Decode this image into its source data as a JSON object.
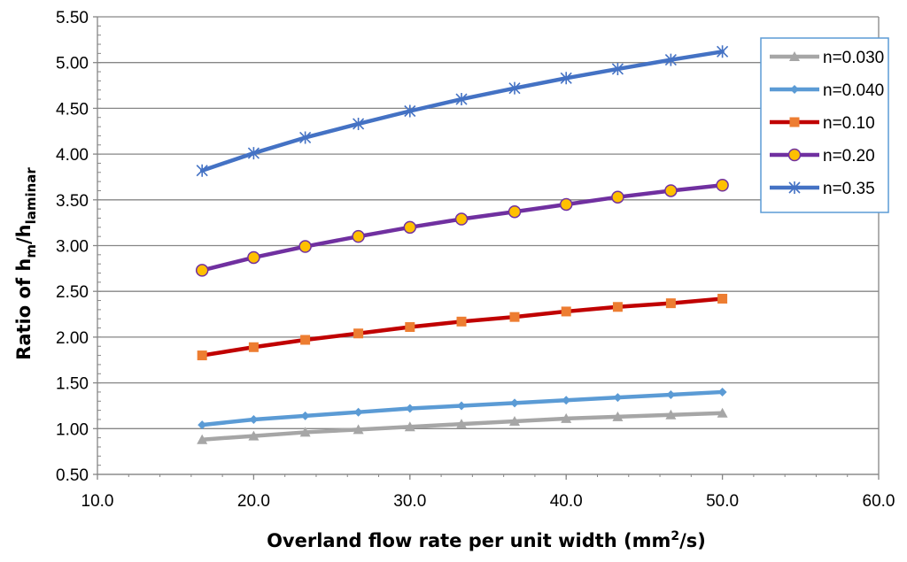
{
  "chart_data": {
    "type": "line",
    "title": "",
    "xlabel": "Overland flow rate per unit width (mm",
    "xlabel_sup": "2",
    "xlabel_tail": "/s)",
    "ylabel": {
      "prefix": "Ratio of h",
      "sub1": "m",
      "mid": "/h",
      "sub2": "laminar"
    },
    "xlim": [
      10.0,
      60.0
    ],
    "ylim": [
      0.5,
      5.5
    ],
    "x_ticks": [
      "10.0",
      "20.0",
      "30.0",
      "40.0",
      "50.0",
      "60.0"
    ],
    "y_ticks": [
      "0.50",
      "1.00",
      "1.50",
      "2.00",
      "2.50",
      "3.00",
      "3.50",
      "4.00",
      "4.50",
      "5.00",
      "5.50"
    ],
    "grid": "horizontal",
    "legend_position": "top-right",
    "x": [
      16.7,
      20.0,
      23.3,
      26.7,
      30.0,
      33.3,
      36.7,
      40.0,
      43.3,
      46.7,
      50.0
    ],
    "series": [
      {
        "name": "n=0.030",
        "color": "#a6a6a6",
        "marker": "triangle",
        "values": [
          0.88,
          0.92,
          0.96,
          0.99,
          1.02,
          1.05,
          1.08,
          1.11,
          1.13,
          1.15,
          1.17
        ]
      },
      {
        "name": "n=0.040",
        "color": "#5b9bd5",
        "marker": "diamond",
        "values": [
          1.04,
          1.1,
          1.14,
          1.18,
          1.22,
          1.25,
          1.28,
          1.31,
          1.34,
          1.37,
          1.4
        ]
      },
      {
        "name": "n=0.10",
        "color": "#c00000",
        "marker_color": "#ed7d31",
        "marker": "square",
        "values": [
          1.8,
          1.89,
          1.97,
          2.04,
          2.11,
          2.17,
          2.22,
          2.28,
          2.33,
          2.37,
          2.42
        ]
      },
      {
        "name": "n=0.20",
        "color": "#7030a0",
        "marker_color": "#ffc000",
        "marker": "circle",
        "values": [
          2.73,
          2.87,
          2.99,
          3.1,
          3.2,
          3.29,
          3.37,
          3.45,
          3.53,
          3.6,
          3.66
        ]
      },
      {
        "name": "n=0.35",
        "color": "#4472c4",
        "marker": "star",
        "values": [
          3.82,
          4.01,
          4.18,
          4.33,
          4.47,
          4.6,
          4.72,
          4.83,
          4.93,
          5.03,
          5.12
        ]
      }
    ]
  }
}
